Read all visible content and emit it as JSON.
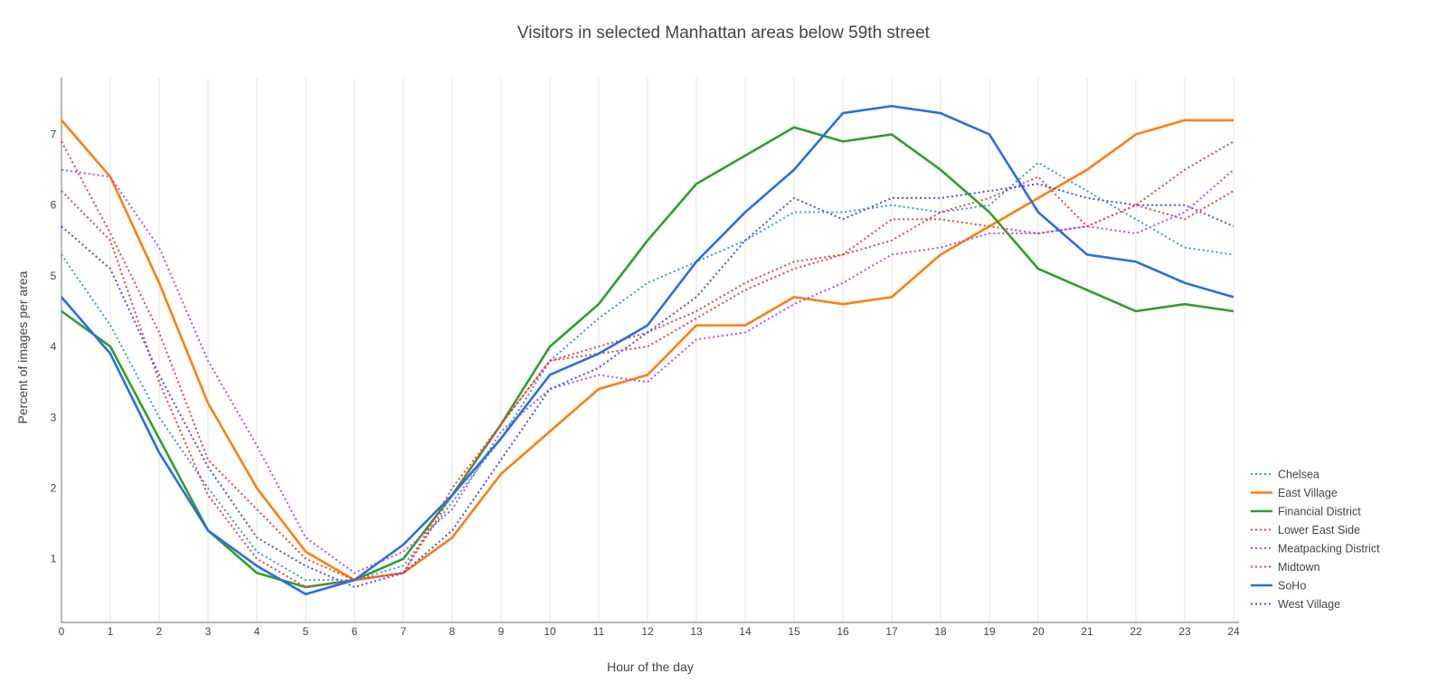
{
  "chart_data": {
    "type": "line",
    "title": "Visitors in selected Manhattan areas below 59th street",
    "xlabel": "Hour of the day",
    "ylabel": "Percent of images per area",
    "x": [
      0,
      1,
      2,
      3,
      4,
      5,
      6,
      7,
      8,
      9,
      10,
      11,
      12,
      13,
      14,
      15,
      16,
      17,
      18,
      19,
      20,
      21,
      22,
      23,
      24
    ],
    "xlim": [
      0,
      24
    ],
    "ylim": [
      0.1,
      7.8
    ],
    "x_ticks": [
      0,
      1,
      2,
      3,
      4,
      5,
      6,
      7,
      8,
      9,
      10,
      11,
      12,
      13,
      14,
      15,
      16,
      17,
      18,
      19,
      20,
      21,
      22,
      23,
      24
    ],
    "y_ticks": [
      1,
      2,
      3,
      4,
      5,
      6,
      7
    ],
    "grid": "vertical",
    "legend_position": "bottom-right",
    "series": [
      {
        "name": "Chelsea",
        "color": "#3a9ad9",
        "style": "dotted",
        "values": [
          5.3,
          4.3,
          3.0,
          2.0,
          1.1,
          0.7,
          0.7,
          0.9,
          1.8,
          2.7,
          3.8,
          4.4,
          4.9,
          5.2,
          5.5,
          5.9,
          5.9,
          6.0,
          5.9,
          6.0,
          6.6,
          6.2,
          5.8,
          5.4,
          5.3
        ]
      },
      {
        "name": "East Village",
        "color": "#ff7f0e",
        "style": "solid",
        "values": [
          7.2,
          6.4,
          4.9,
          3.2,
          2.0,
          1.1,
          0.7,
          0.8,
          1.3,
          2.2,
          2.8,
          3.4,
          3.6,
          4.3,
          4.3,
          4.7,
          4.6,
          4.7,
          5.3,
          5.7,
          6.1,
          6.5,
          7.0,
          7.2,
          7.2
        ]
      },
      {
        "name": "Financial District",
        "color": "#2ca02c",
        "style": "solid",
        "values": [
          4.5,
          4.0,
          2.7,
          1.4,
          0.8,
          0.6,
          0.7,
          1.0,
          1.9,
          2.9,
          4.0,
          4.6,
          5.5,
          6.3,
          6.7,
          7.1,
          6.9,
          7.0,
          6.5,
          5.9,
          5.1,
          4.8,
          4.5,
          4.6,
          4.5
        ]
      },
      {
        "name": "Lower East Side",
        "color": "#ef4444",
        "style": "dotted",
        "values": [
          6.2,
          5.5,
          3.5,
          1.9,
          1.0,
          0.6,
          0.7,
          0.8,
          1.9,
          2.9,
          3.8,
          4.0,
          4.2,
          4.5,
          4.9,
          5.2,
          5.3,
          5.8,
          5.8,
          5.7,
          5.6,
          5.7,
          6.0,
          5.8,
          6.2
        ]
      },
      {
        "name": "Meatpacking District",
        "color": "#b84ff7",
        "style": "dotted",
        "values": [
          6.5,
          6.4,
          5.4,
          3.8,
          2.6,
          1.3,
          0.8,
          1.1,
          1.7,
          2.8,
          3.4,
          3.6,
          3.5,
          4.1,
          4.2,
          4.6,
          4.9,
          5.3,
          5.4,
          5.6,
          5.6,
          5.7,
          5.6,
          5.9,
          6.5
        ]
      },
      {
        "name": "Midtown",
        "color": "#ef4444",
        "style": "dotted",
        "values": [
          6.9,
          5.6,
          4.2,
          2.4,
          1.7,
          1.0,
          0.7,
          0.8,
          2.0,
          2.9,
          3.8,
          3.9,
          4.0,
          4.4,
          4.8,
          5.1,
          5.3,
          5.5,
          5.9,
          6.1,
          6.4,
          5.7,
          6.0,
          6.5,
          6.9
        ]
      },
      {
        "name": "SoHo",
        "color": "#2a6ee0",
        "style": "solid",
        "values": [
          4.7,
          3.9,
          2.5,
          1.4,
          0.9,
          0.5,
          0.7,
          1.2,
          1.9,
          2.7,
          3.6,
          3.9,
          4.3,
          5.2,
          5.9,
          6.5,
          7.3,
          7.4,
          7.3,
          7.0,
          5.9,
          5.3,
          5.2,
          4.9,
          4.7
        ]
      },
      {
        "name": "West Village",
        "color": "#4f4ff2",
        "style": "dotted",
        "values": [
          5.7,
          5.1,
          3.6,
          2.3,
          1.3,
          0.9,
          0.6,
          0.8,
          1.4,
          2.4,
          3.4,
          3.7,
          4.2,
          4.7,
          5.5,
          6.1,
          5.8,
          6.1,
          6.1,
          6.2,
          6.3,
          6.1,
          6.0,
          6.0,
          5.7
        ]
      }
    ]
  }
}
